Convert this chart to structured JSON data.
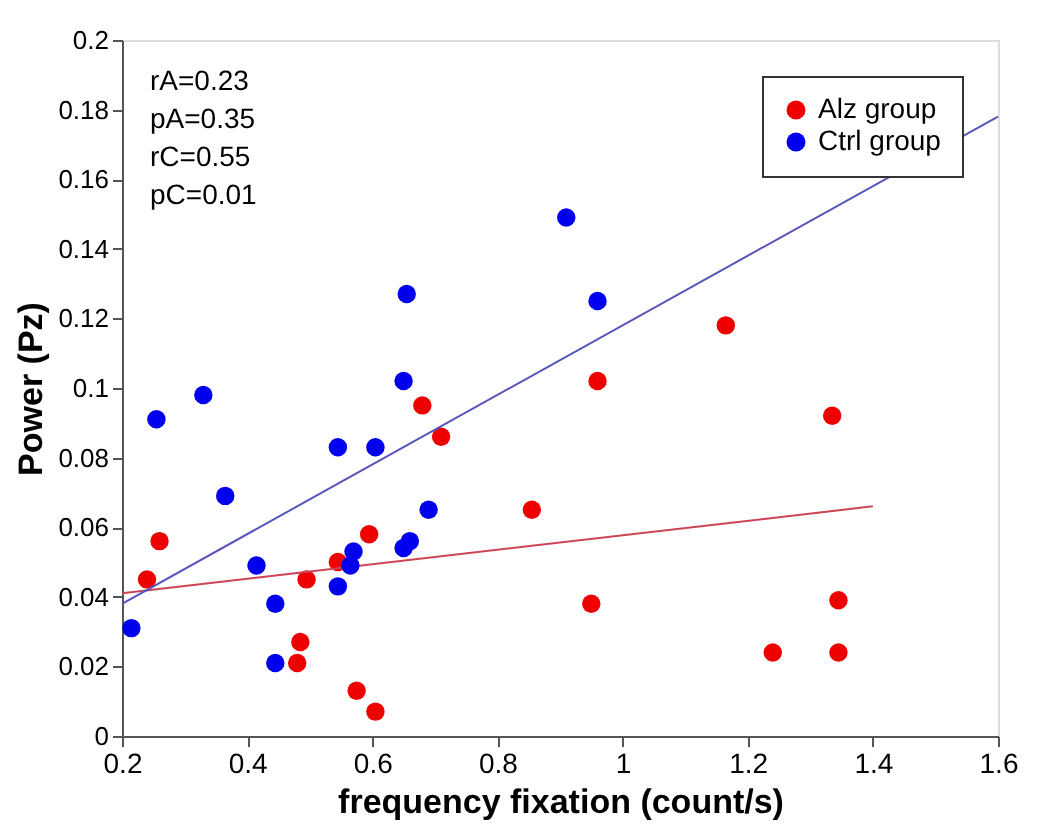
{
  "chart_data": {
    "type": "scatter",
    "xlabel": "frequency fixation (count/s)",
    "ylabel": "Power (Pz)",
    "xlim": [
      0.2,
      1.6
    ],
    "xticks": [
      0.2,
      0.4,
      0.6,
      0.8,
      1,
      1.2,
      1.4,
      1.6
    ],
    "ylim": [
      0,
      0.2
    ],
    "yticks": [
      0,
      0.02,
      0.04,
      0.06,
      0.08,
      0.1,
      0.12,
      0.14,
      0.16,
      0.18,
      0.2
    ],
    "grid": false,
    "legend": "top right",
    "marker": "circle",
    "annotations": [
      "rA=0.23",
      "pA=0.35",
      "rC=0.55",
      "pC=0.01"
    ],
    "series": [
      {
        "name": "Alz group",
        "color": "#ee0000",
        "x": [
          0.24,
          0.26,
          0.48,
          0.485,
          0.495,
          0.545,
          0.575,
          0.595,
          0.605,
          0.68,
          0.71,
          0.855,
          0.95,
          0.96,
          1.165,
          1.24,
          1.335,
          1.345,
          1.345
        ],
        "values": [
          0.045,
          0.056,
          0.021,
          0.027,
          0.045,
          0.05,
          0.013,
          0.058,
          0.007,
          0.095,
          0.086,
          0.065,
          0.038,
          0.102,
          0.118,
          0.024,
          0.092,
          0.039,
          0.024
        ]
      },
      {
        "type": "line",
        "marker": "none",
        "color": "#cc4455",
        "x": [
          0.2,
          1.4
        ],
        "values": [
          0.041,
          0.066
        ]
      },
      {
        "name": "Ctrl group",
        "color": "#0000ee",
        "x": [
          0.215,
          0.255,
          0.33,
          0.365,
          0.415,
          0.445,
          0.445,
          0.545,
          0.545,
          0.565,
          0.57,
          0.605,
          0.65,
          0.655,
          0.65,
          0.66,
          0.69,
          0.91,
          0.96
        ],
        "values": [
          0.031,
          0.091,
          0.098,
          0.069,
          0.049,
          0.038,
          0.021,
          0.083,
          0.043,
          0.049,
          0.053,
          0.083,
          0.054,
          0.127,
          0.102,
          0.056,
          0.065,
          0.149,
          0.125
        ]
      },
      {
        "type": "line",
        "marker": "none",
        "color": "#5555bb",
        "x": [
          0.2,
          1.6
        ],
        "values": [
          0.038,
          0.178
        ]
      }
    ]
  }
}
